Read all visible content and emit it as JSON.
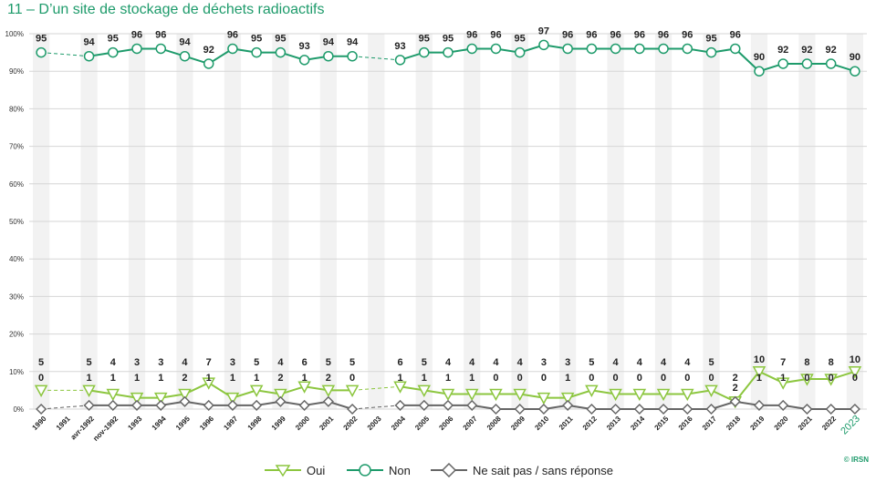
{
  "title": "11 – D’un site de stockage de déchets radioactifs",
  "credit": "© IRSN",
  "chart_data": {
    "type": "line",
    "ylim": [
      0,
      100
    ],
    "yticks": [
      "0%",
      "10%",
      "20%",
      "30%",
      "40%",
      "50%",
      "60%",
      "70%",
      "80%",
      "90%",
      "100%"
    ],
    "categories": [
      "1990",
      "1991",
      "avr-1992",
      "nov-1992",
      "1993",
      "1994",
      "1995",
      "1996",
      "1997",
      "1998",
      "1999",
      "2000",
      "2001",
      "2002",
      "2003",
      "2004",
      "2005",
      "2006",
      "2007",
      "2008",
      "2009",
      "2010",
      "2011",
      "2012",
      "2013",
      "2014",
      "2015",
      "2016",
      "2017",
      "2018",
      "2019",
      "2020",
      "2021",
      "2022",
      "2023"
    ],
    "highlight_category": "2023",
    "grid": true,
    "legend_position": "bottom",
    "series": [
      {
        "name": "Oui",
        "color": "#8cc63f",
        "marker": "triangle-down",
        "values": [
          5,
          null,
          5,
          4,
          3,
          3,
          4,
          7,
          3,
          5,
          4,
          6,
          5,
          5,
          null,
          6,
          5,
          4,
          4,
          4,
          4,
          3,
          3,
          5,
          4,
          4,
          4,
          4,
          5,
          2,
          10,
          7,
          8,
          8,
          10
        ]
      },
      {
        "name": "Non",
        "color": "#1e9b6b",
        "marker": "circle",
        "values": [
          95,
          null,
          94,
          95,
          96,
          96,
          94,
          92,
          96,
          95,
          95,
          93,
          94,
          94,
          null,
          93,
          95,
          95,
          96,
          96,
          95,
          97,
          96,
          96,
          96,
          96,
          96,
          96,
          95,
          96,
          90,
          92,
          92,
          92,
          90
        ]
      },
      {
        "name": "Ne sait pas / sans réponse",
        "color": "#666666",
        "marker": "diamond",
        "values": [
          0,
          null,
          1,
          1,
          1,
          1,
          2,
          1,
          1,
          1,
          2,
          1,
          2,
          0,
          null,
          1,
          1,
          1,
          1,
          0,
          0,
          0,
          1,
          0,
          0,
          0,
          0,
          0,
          0,
          2,
          1,
          1,
          0,
          0,
          0
        ]
      }
    ]
  },
  "legend": [
    {
      "label": "Oui"
    },
    {
      "label": "Non"
    },
    {
      "label": "Ne sait pas / sans réponse"
    }
  ]
}
